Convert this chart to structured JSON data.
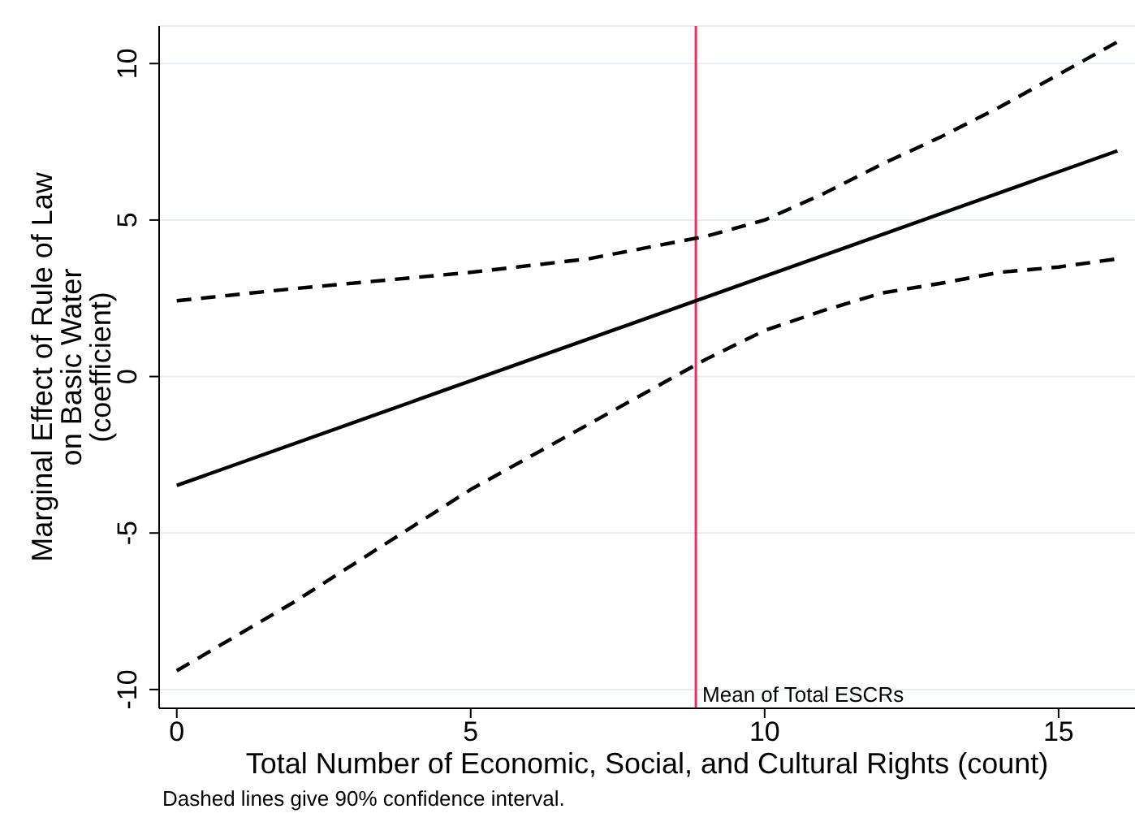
{
  "chart_data": {
    "type": "line",
    "xlabel": "Total Number of Economic, Social, and Cultural Rights (count)",
    "ylabel": "Marginal Effect of Rule of Law\non Basic Water\n(coefficient)",
    "xlim": [
      -0.3,
      16.3
    ],
    "xticks": [
      0,
      5,
      10,
      15
    ],
    "ylim": [
      -10.6,
      11.2
    ],
    "yticks": [
      -10,
      -5,
      0,
      5,
      10
    ],
    "grid": "y",
    "legend": false,
    "series": [
      {
        "color": "#000000",
        "line_style": "solid",
        "x": [
          0,
          16
        ],
        "values": [
          -3.48,
          7.21
        ]
      },
      {
        "color": "#000000",
        "line_style": "dashed",
        "x": [
          0,
          2,
          5,
          7,
          9,
          10,
          11,
          12,
          13,
          14,
          15,
          16
        ],
        "values": [
          2.42,
          2.81,
          3.33,
          3.76,
          4.48,
          5.0,
          5.84,
          6.79,
          7.66,
          8.61,
          9.65,
          10.69
        ]
      },
      {
        "color": "#000000",
        "line_style": "dashed",
        "x": [
          0,
          2,
          5,
          7,
          9,
          10,
          11,
          12,
          13,
          14,
          15,
          16
        ],
        "values": [
          -9.4,
          -7.2,
          -3.61,
          -1.53,
          0.55,
          1.47,
          2.11,
          2.67,
          2.98,
          3.33,
          3.5,
          3.76
        ]
      }
    ],
    "ref_lines": [
      {
        "axis": "x",
        "value": 8.83,
        "label": "Mean of Total ESCRs",
        "color": "#e8305a"
      }
    ],
    "annotations": [
      "Dashed lines give 90% confidence interval."
    ]
  }
}
